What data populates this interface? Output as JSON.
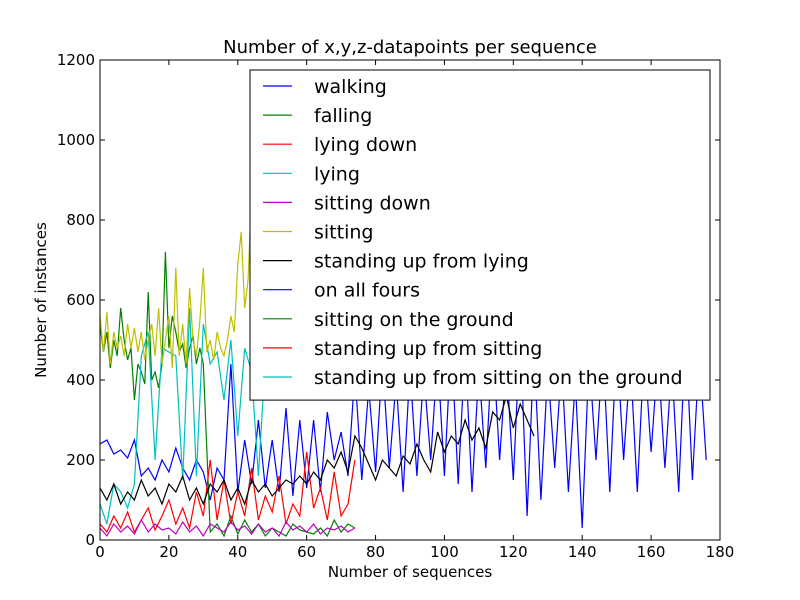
{
  "chart_data": {
    "type": "line",
    "title": "Number of x,y,z-datapoints per sequence",
    "xlabel": "Number of sequences",
    "ylabel": "Number of instances",
    "xlim": [
      0,
      180
    ],
    "ylim": [
      0,
      1200
    ],
    "xticks": [
      "0",
      "20",
      "40",
      "60",
      "80",
      "100",
      "120",
      "140",
      "160",
      "180"
    ],
    "yticks": [
      "0",
      "200",
      "400",
      "600",
      "800",
      "1000",
      "1200"
    ],
    "grid": false,
    "legend_position": "top-right",
    "series": [
      {
        "name": "walking",
        "color": "#0000ff",
        "x": [
          0,
          2,
          4,
          6,
          8,
          10,
          12,
          14,
          16,
          18,
          20,
          22,
          24,
          26,
          28,
          30,
          32,
          34,
          36,
          38,
          40,
          42,
          44,
          46,
          48,
          50,
          52,
          54,
          56,
          58,
          60,
          62,
          64,
          66,
          68,
          70,
          72,
          74,
          76,
          78,
          80,
          82,
          84,
          86,
          88,
          90,
          92,
          94,
          96,
          98,
          100,
          102,
          104,
          106,
          108,
          110,
          112,
          114,
          116,
          118,
          120,
          122,
          124,
          126,
          128,
          130,
          132,
          134,
          136,
          138,
          140,
          142,
          144,
          146,
          148,
          150,
          152,
          154,
          156,
          158,
          160,
          162,
          164,
          166,
          168,
          170,
          172,
          174,
          176
        ],
        "y": [
          240,
          250,
          215,
          225,
          205,
          250,
          160,
          180,
          150,
          200,
          170,
          230,
          180,
          150,
          200,
          170,
          100,
          180,
          150,
          440,
          120,
          250,
          140,
          300,
          130,
          250,
          120,
          330,
          110,
          300,
          130,
          300,
          120,
          320,
          200,
          270,
          160,
          420,
          150,
          380,
          170,
          450,
          180,
          400,
          120,
          430,
          160,
          420,
          200,
          460,
          160,
          500,
          140,
          480,
          120,
          430,
          180,
          500,
          200,
          450,
          150,
          520,
          60,
          480,
          100,
          430,
          180,
          440,
          120,
          400,
          30,
          460,
          200,
          480,
          120,
          500,
          200,
          450,
          120,
          480,
          220,
          460,
          180,
          440,
          120,
          520,
          150,
          470,
          200
        ]
      },
      {
        "name": "falling",
        "color": "#008000",
        "x": [
          0,
          1,
          2,
          3,
          4,
          5,
          6,
          7,
          8,
          9,
          10,
          11,
          12,
          13,
          14,
          15,
          16,
          17,
          18,
          19,
          20,
          21,
          22,
          23,
          24,
          25,
          26,
          27,
          28,
          29,
          30,
          32,
          34,
          36,
          38,
          40,
          42,
          44,
          46,
          48,
          50,
          52,
          54,
          56,
          58,
          60,
          62,
          64,
          66,
          68,
          70,
          72,
          74
        ],
        "y": [
          540,
          470,
          520,
          430,
          500,
          460,
          580,
          500,
          450,
          480,
          350,
          440,
          420,
          390,
          620,
          400,
          420,
          380,
          440,
          720,
          480,
          560,
          520,
          470,
          490,
          430,
          480,
          510,
          440,
          480,
          440,
          20,
          40,
          10,
          60,
          15,
          50,
          20,
          40,
          10,
          30,
          20,
          10,
          40,
          25,
          20,
          15,
          30,
          10,
          50,
          20,
          40,
          30
        ]
      },
      {
        "name": "lying down",
        "color": "#ff0000",
        "x": [
          0,
          2,
          4,
          6,
          8,
          10,
          12,
          14,
          16,
          18,
          20,
          22,
          24,
          26,
          28,
          30,
          32,
          34,
          36,
          38,
          40,
          42,
          44,
          46,
          48,
          50,
          52,
          54,
          56,
          58,
          60,
          62,
          64,
          66,
          68,
          70,
          72,
          74
        ],
        "y": [
          40,
          20,
          60,
          30,
          70,
          20,
          50,
          80,
          25,
          60,
          100,
          40,
          80,
          30,
          120,
          60,
          200,
          50,
          150,
          40,
          120,
          60,
          180,
          50,
          110,
          70,
          160,
          40,
          90,
          60,
          220,
          80,
          130,
          50,
          170,
          60,
          90,
          200
        ]
      },
      {
        "name": "lying",
        "color": "#00bfbf",
        "x": [
          0,
          2,
          4,
          6,
          8,
          10,
          12,
          14,
          16,
          18,
          20,
          22,
          24,
          26,
          28,
          30,
          32,
          34,
          36,
          38,
          40,
          42,
          44,
          46,
          48,
          50,
          52,
          54,
          56,
          58,
          60,
          62,
          64,
          66,
          68,
          70,
          72,
          74
        ],
        "y": [
          90,
          40,
          140,
          120,
          80,
          140,
          460,
          520,
          200,
          480,
          470,
          460,
          150,
          580,
          160,
          540,
          440,
          470,
          350,
          500,
          260,
          480,
          420,
          160,
          450,
          410,
          480,
          420,
          470,
          440,
          560,
          480,
          520,
          430,
          500,
          460,
          480,
          520
        ]
      },
      {
        "name": "sitting down",
        "color": "#bf00bf",
        "x": [
          0,
          2,
          4,
          6,
          8,
          10,
          12,
          14,
          16,
          18,
          20,
          22,
          24,
          26,
          28,
          30,
          32,
          34,
          36,
          38,
          40,
          42,
          44,
          46,
          48,
          50,
          52,
          54,
          56,
          58,
          60,
          62,
          64,
          66,
          68,
          70,
          72,
          74
        ],
        "y": [
          30,
          10,
          40,
          20,
          35,
          15,
          50,
          20,
          40,
          25,
          30,
          15,
          45,
          20,
          35,
          10,
          40,
          30,
          20,
          45,
          25,
          35,
          15,
          40,
          20,
          30,
          10,
          45,
          25,
          35,
          20,
          40,
          15,
          30,
          25,
          35,
          20,
          30
        ]
      },
      {
        "name": "sitting",
        "color": "#bfbf00",
        "x": [
          0,
          1,
          2,
          3,
          4,
          5,
          6,
          7,
          8,
          9,
          10,
          11,
          12,
          13,
          14,
          15,
          16,
          17,
          18,
          19,
          20,
          21,
          22,
          23,
          24,
          25,
          26,
          27,
          28,
          29,
          30,
          31,
          32,
          33,
          34,
          35,
          36,
          37,
          38,
          39,
          40,
          41,
          42,
          43,
          44
        ],
        "y": [
          560,
          470,
          570,
          440,
          520,
          480,
          510,
          460,
          540,
          480,
          530,
          470,
          520,
          450,
          500,
          540,
          460,
          580,
          440,
          500,
          560,
          430,
          680,
          460,
          540,
          440,
          630,
          500,
          460,
          550,
          680,
          470,
          500,
          450,
          520,
          480,
          460,
          500,
          560,
          520,
          690,
          770,
          580,
          650,
          870
        ]
      },
      {
        "name": "standing up from lying",
        "color": "#000000",
        "x": [
          0,
          2,
          4,
          6,
          8,
          10,
          12,
          14,
          16,
          18,
          20,
          22,
          24,
          26,
          28,
          30,
          32,
          34,
          36,
          38,
          40,
          42,
          44,
          46,
          48,
          50,
          52,
          54,
          56,
          58,
          60,
          62,
          64,
          66,
          68,
          70,
          72,
          74,
          76,
          78,
          80,
          82,
          84,
          86,
          88,
          90,
          92,
          94,
          96,
          98,
          100,
          102,
          104,
          106,
          108,
          110,
          112,
          114,
          116,
          118,
          120,
          122,
          124,
          126
        ],
        "y": [
          130,
          100,
          140,
          90,
          120,
          100,
          150,
          110,
          130,
          90,
          140,
          120,
          160,
          100,
          130,
          90,
          140,
          120,
          150,
          100,
          130,
          90,
          150,
          120,
          140,
          110,
          130,
          150,
          140,
          160,
          140,
          170,
          150,
          200,
          180,
          220,
          170,
          260,
          230,
          190,
          150,
          200,
          180,
          160,
          210,
          190,
          240,
          200,
          170,
          270,
          220,
          260,
          240,
          300,
          250,
          280,
          230,
          320,
          300,
          360,
          280,
          340,
          300,
          260
        ]
      },
      {
        "name": "on all fours",
        "color": "#0000ff",
        "x": [],
        "y": []
      },
      {
        "name": "sitting on the ground",
        "color": "#008000",
        "x": [],
        "y": []
      },
      {
        "name": "standing up from sitting",
        "color": "#ff0000",
        "x": [],
        "y": []
      },
      {
        "name": "standing up from sitting on the ground",
        "color": "#00bfbf",
        "x": [],
        "y": []
      }
    ]
  }
}
